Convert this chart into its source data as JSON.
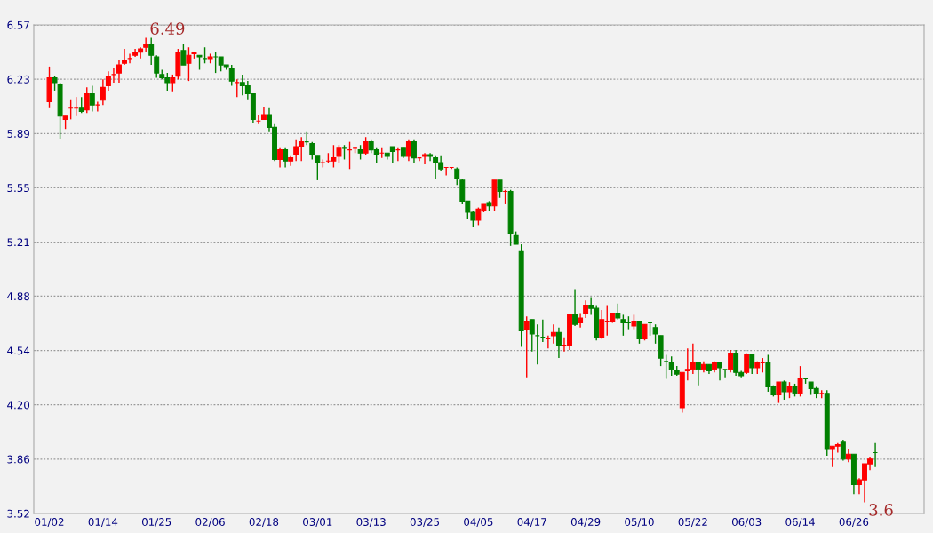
{
  "chart_data": {
    "type": "candlestick",
    "annotations": [
      "6.49",
      "3.6"
    ],
    "categories": [
      "01/02",
      null,
      null,
      null,
      null,
      null,
      null,
      null,
      null,
      null,
      "01/14",
      null,
      null,
      null,
      null,
      null,
      null,
      null,
      null,
      null,
      "01/25",
      null,
      null,
      null,
      null,
      null,
      null,
      null,
      null,
      null,
      "02/06",
      null,
      null,
      null,
      null,
      null,
      null,
      null,
      null,
      null,
      "02/18",
      null,
      null,
      null,
      null,
      null,
      null,
      null,
      null,
      null,
      "03/01",
      null,
      null,
      null,
      null,
      null,
      null,
      null,
      null,
      null,
      "03/13",
      null,
      null,
      null,
      null,
      null,
      null,
      null,
      null,
      null,
      "03/25",
      null,
      null,
      null,
      null,
      null,
      null,
      null,
      null,
      null,
      "04/05",
      null,
      null,
      null,
      null,
      null,
      null,
      null,
      null,
      null,
      "04/17",
      null,
      null,
      null,
      null,
      null,
      null,
      null,
      null,
      null,
      "04/29",
      null,
      null,
      null,
      null,
      null,
      null,
      null,
      null,
      null,
      "05/10",
      null,
      null,
      null,
      null,
      null,
      null,
      null,
      null,
      null,
      "05/22",
      null,
      null,
      null,
      null,
      null,
      null,
      null,
      null,
      null,
      "06/03",
      null,
      null,
      null,
      null,
      null,
      null,
      null,
      null,
      null,
      "06/14",
      null,
      null,
      null,
      null,
      null,
      null,
      null,
      null,
      null,
      "06/26",
      null,
      null,
      null,
      null
    ],
    "ohlc": [
      [
        6.09,
        6.31,
        6.05,
        6.24
      ],
      [
        6.24,
        6.25,
        6.16,
        6.21
      ],
      [
        6.2,
        6.21,
        5.86,
        6.0
      ],
      [
        5.98,
        6.0,
        5.92,
        6.0
      ],
      [
        6.05,
        6.1,
        5.98,
        6.05
      ],
      [
        6.05,
        6.12,
        6.0,
        6.05
      ],
      [
        6.05,
        6.12,
        6.02,
        6.03
      ],
      [
        6.04,
        6.18,
        6.02,
        6.14
      ],
      [
        6.14,
        6.19,
        6.03,
        6.07
      ],
      [
        6.07,
        6.09,
        6.03,
        6.07
      ],
      [
        6.1,
        6.23,
        6.07,
        6.18
      ],
      [
        6.19,
        6.28,
        6.16,
        6.25
      ],
      [
        6.26,
        6.3,
        6.21,
        6.26
      ],
      [
        6.27,
        6.35,
        6.21,
        6.32
      ],
      [
        6.33,
        6.42,
        6.32,
        6.35
      ],
      [
        6.36,
        6.39,
        6.33,
        6.36
      ],
      [
        6.38,
        6.42,
        6.37,
        6.4
      ],
      [
        6.4,
        6.43,
        6.36,
        6.42
      ],
      [
        6.43,
        6.49,
        6.4,
        6.45
      ],
      [
        6.45,
        6.49,
        6.32,
        6.38
      ],
      [
        6.37,
        6.38,
        6.24,
        6.27
      ],
      [
        6.26,
        6.29,
        6.23,
        6.24
      ],
      [
        6.24,
        6.27,
        6.16,
        6.21
      ],
      [
        6.21,
        6.26,
        6.15,
        6.24
      ],
      [
        6.25,
        6.42,
        6.23,
        6.4
      ],
      [
        6.41,
        6.45,
        6.32,
        6.32
      ],
      [
        6.33,
        6.43,
        6.22,
        6.38
      ],
      [
        6.39,
        6.4,
        6.36,
        6.4
      ],
      [
        6.38,
        6.38,
        6.29,
        6.37
      ],
      [
        6.36,
        6.43,
        6.33,
        6.36
      ],
      [
        6.36,
        6.39,
        6.33,
        6.37
      ],
      [
        6.37,
        6.4,
        6.27,
        6.37
      ],
      [
        6.37,
        6.37,
        6.28,
        6.32
      ],
      [
        6.32,
        6.32,
        6.29,
        6.31
      ],
      [
        6.3,
        6.32,
        6.19,
        6.22
      ],
      [
        6.21,
        6.23,
        6.12,
        6.21
      ],
      [
        6.21,
        6.26,
        6.13,
        6.19
      ],
      [
        6.19,
        6.22,
        6.1,
        6.14
      ],
      [
        6.14,
        6.14,
        5.96,
        5.98
      ],
      [
        5.97,
        6.01,
        5.95,
        5.97
      ],
      [
        5.98,
        6.06,
        5.98,
        6.01
      ],
      [
        6.01,
        6.05,
        5.9,
        5.93
      ],
      [
        5.93,
        5.95,
        5.72,
        5.73
      ],
      [
        5.73,
        5.8,
        5.68,
        5.79
      ],
      [
        5.79,
        5.8,
        5.68,
        5.72
      ],
      [
        5.72,
        5.75,
        5.69,
        5.74
      ],
      [
        5.76,
        5.85,
        5.72,
        5.81
      ],
      [
        5.81,
        5.87,
        5.72,
        5.84
      ],
      [
        5.84,
        5.9,
        5.82,
        5.84
      ],
      [
        5.83,
        5.84,
        5.73,
        5.76
      ],
      [
        5.75,
        5.75,
        5.6,
        5.71
      ],
      [
        5.71,
        5.73,
        5.68,
        5.71
      ],
      [
        5.72,
        5.77,
        5.71,
        5.72
      ],
      [
        5.72,
        5.82,
        5.68,
        5.74
      ],
      [
        5.75,
        5.82,
        5.71,
        5.8
      ],
      [
        5.8,
        5.82,
        5.73,
        5.8
      ],
      [
        5.79,
        5.84,
        5.67,
        5.79
      ],
      [
        5.8,
        5.81,
        5.77,
        5.8
      ],
      [
        5.79,
        5.82,
        5.73,
        5.77
      ],
      [
        5.77,
        5.87,
        5.76,
        5.84
      ],
      [
        5.84,
        5.85,
        5.77,
        5.79
      ],
      [
        5.79,
        5.8,
        5.71,
        5.76
      ],
      [
        5.77,
        5.8,
        5.74,
        5.77
      ],
      [
        5.77,
        5.77,
        5.73,
        5.75
      ],
      [
        5.81,
        5.81,
        5.71,
        5.78
      ],
      [
        5.79,
        5.8,
        5.72,
        5.79
      ],
      [
        5.8,
        5.8,
        5.74,
        5.75
      ],
      [
        5.75,
        5.85,
        5.72,
        5.84
      ],
      [
        5.84,
        5.85,
        5.71,
        5.74
      ],
      [
        5.74,
        5.74,
        5.72,
        5.74
      ],
      [
        5.75,
        5.77,
        5.7,
        5.76
      ],
      [
        5.76,
        5.77,
        5.72,
        5.75
      ],
      [
        5.74,
        5.75,
        5.61,
        5.71
      ],
      [
        5.71,
        5.75,
        5.66,
        5.67
      ],
      [
        5.68,
        5.68,
        5.63,
        5.68
      ],
      [
        5.68,
        5.68,
        5.67,
        5.68
      ],
      [
        5.67,
        5.68,
        5.57,
        5.61
      ],
      [
        5.6,
        5.61,
        5.45,
        5.47
      ],
      [
        5.47,
        5.47,
        5.36,
        5.4
      ],
      [
        5.4,
        5.41,
        5.31,
        5.35
      ],
      [
        5.35,
        5.43,
        5.32,
        5.42
      ],
      [
        5.41,
        5.45,
        5.4,
        5.45
      ],
      [
        5.46,
        5.47,
        5.41,
        5.44
      ],
      [
        5.44,
        5.6,
        5.41,
        5.6
      ],
      [
        5.6,
        5.6,
        5.49,
        5.53
      ],
      [
        5.53,
        5.54,
        5.45,
        5.53
      ],
      [
        5.53,
        5.54,
        5.19,
        5.27
      ],
      [
        5.26,
        5.28,
        5.2,
        5.2
      ],
      [
        5.16,
        5.2,
        4.56,
        4.66
      ],
      [
        4.67,
        4.75,
        4.37,
        4.72
      ],
      [
        4.73,
        4.73,
        4.53,
        4.64
      ],
      [
        4.63,
        4.7,
        4.45,
        4.63
      ],
      [
        4.62,
        4.73,
        4.59,
        4.62
      ],
      [
        4.61,
        4.63,
        4.55,
        4.61
      ],
      [
        4.63,
        4.7,
        4.58,
        4.65
      ],
      [
        4.65,
        4.68,
        4.49,
        4.57
      ],
      [
        4.57,
        4.62,
        4.53,
        4.57
      ],
      [
        4.57,
        4.76,
        4.54,
        4.76
      ],
      [
        4.76,
        4.92,
        4.69,
        4.7
      ],
      [
        4.71,
        4.77,
        4.68,
        4.74
      ],
      [
        4.77,
        4.85,
        4.74,
        4.82
      ],
      [
        4.82,
        4.87,
        4.76,
        4.8
      ],
      [
        4.8,
        4.82,
        4.6,
        4.62
      ],
      [
        4.62,
        4.79,
        4.61,
        4.73
      ],
      [
        4.72,
        4.82,
        4.63,
        4.72
      ],
      [
        4.72,
        4.77,
        4.71,
        4.77
      ],
      [
        4.77,
        4.83,
        4.73,
        4.74
      ],
      [
        4.73,
        4.76,
        4.63,
        4.71
      ],
      [
        4.71,
        4.75,
        4.67,
        4.71
      ],
      [
        4.69,
        4.76,
        4.67,
        4.72
      ],
      [
        4.72,
        4.72,
        4.58,
        4.61
      ],
      [
        4.61,
        4.7,
        4.6,
        4.7
      ],
      [
        4.71,
        4.71,
        4.63,
        4.71
      ],
      [
        4.68,
        4.7,
        4.58,
        4.64
      ],
      [
        4.63,
        4.63,
        4.44,
        4.49
      ],
      [
        4.47,
        4.51,
        4.36,
        4.47
      ],
      [
        4.46,
        4.5,
        4.38,
        4.42
      ],
      [
        4.41,
        4.44,
        4.38,
        4.39
      ],
      [
        4.18,
        4.4,
        4.15,
        4.4
      ],
      [
        4.41,
        4.55,
        4.35,
        4.42
      ],
      [
        4.42,
        4.58,
        4.39,
        4.46
      ],
      [
        4.46,
        4.46,
        4.32,
        4.42
      ],
      [
        4.42,
        4.47,
        4.4,
        4.45
      ],
      [
        4.45,
        4.45,
        4.39,
        4.41
      ],
      [
        4.42,
        4.47,
        4.4,
        4.46
      ],
      [
        4.46,
        4.46,
        4.35,
        4.43
      ],
      [
        4.42,
        4.42,
        4.37,
        4.42
      ],
      [
        4.42,
        4.54,
        4.4,
        4.52
      ],
      [
        4.52,
        4.54,
        4.38,
        4.4
      ],
      [
        4.4,
        4.41,
        4.37,
        4.38
      ],
      [
        4.4,
        4.52,
        4.39,
        4.51
      ],
      [
        4.51,
        4.51,
        4.39,
        4.43
      ],
      [
        4.43,
        4.47,
        4.39,
        4.46
      ],
      [
        4.46,
        4.49,
        4.4,
        4.46
      ],
      [
        4.46,
        4.51,
        4.28,
        4.31
      ],
      [
        4.31,
        4.32,
        4.25,
        4.26
      ],
      [
        4.26,
        4.34,
        4.21,
        4.34
      ],
      [
        4.34,
        4.35,
        4.23,
        4.28
      ],
      [
        4.28,
        4.34,
        4.24,
        4.31
      ],
      [
        4.31,
        4.33,
        4.25,
        4.27
      ],
      [
        4.27,
        4.44,
        4.25,
        4.36
      ],
      [
        4.36,
        4.36,
        4.33,
        4.36
      ],
      [
        4.34,
        4.34,
        4.26,
        4.3
      ],
      [
        4.3,
        4.31,
        4.24,
        4.27
      ],
      [
        4.27,
        4.29,
        4.24,
        4.27
      ],
      [
        4.27,
        4.29,
        3.88,
        3.92
      ],
      [
        3.92,
        3.94,
        3.81,
        3.94
      ],
      [
        3.94,
        3.96,
        3.9,
        3.95
      ],
      [
        3.97,
        3.98,
        3.85,
        3.86
      ],
      [
        3.86,
        3.92,
        3.84,
        3.89
      ],
      [
        3.89,
        3.89,
        3.64,
        3.7
      ],
      [
        3.7,
        3.74,
        3.64,
        3.73
      ],
      [
        3.73,
        3.83,
        3.59,
        3.83
      ],
      [
        3.83,
        3.87,
        3.79,
        3.86
      ],
      [
        3.9,
        3.96,
        3.81,
        3.9
      ]
    ],
    "colors": [
      "#ff0000",
      "#008000",
      "#008000",
      "#ff0000",
      "#ff0000",
      "#ff0000",
      "#008000",
      "#ff0000",
      "#008000",
      "#ff0000",
      "#ff0000",
      "#ff0000",
      "#ff0000",
      "#ff0000",
      "#ff0000",
      "#ff0000",
      "#ff0000",
      "#ff0000",
      "#ff0000",
      "#008000",
      "#008000",
      "#008000",
      "#008000",
      "#ff0000",
      "#ff0000",
      "#008000",
      "#ff0000",
      "#ff0000",
      "#008000",
      "#008000",
      "#ff0000",
      "#008000",
      "#008000",
      "#008000",
      "#008000",
      "#ff0000",
      "#008000",
      "#008000",
      "#008000",
      "#ff0000",
      "#ff0000",
      "#008000",
      "#008000",
      "#ff0000",
      "#008000",
      "#ff0000",
      "#ff0000",
      "#ff0000",
      "#008000",
      "#008000",
      "#008000",
      "#ff0000",
      "#ff0000",
      "#ff0000",
      "#ff0000",
      "#008000",
      "#ff0000",
      "#ff0000",
      "#008000",
      "#ff0000",
      "#008000",
      "#008000",
      "#ff0000",
      "#008000",
      "#008000",
      "#ff0000",
      "#008000",
      "#ff0000",
      "#008000",
      "#ff0000",
      "#ff0000",
      "#008000",
      "#008000",
      "#008000",
      "#ff0000",
      "#ff0000",
      "#008000",
      "#008000",
      "#008000",
      "#008000",
      "#ff0000",
      "#ff0000",
      "#008000",
      "#ff0000",
      "#008000",
      "#ff0000",
      "#008000",
      "#008000",
      "#008000",
      "#ff0000",
      "#008000",
      "#008000",
      "#008000",
      "#ff0000",
      "#ff0000",
      "#008000",
      "#ff0000",
      "#ff0000",
      "#008000",
      "#ff0000",
      "#ff0000",
      "#008000",
      "#008000",
      "#ff0000",
      "#ff0000",
      "#ff0000",
      "#008000",
      "#008000",
      "#008000",
      "#ff0000",
      "#008000",
      "#ff0000",
      "#008000",
      "#008000",
      "#008000",
      "#008000",
      "#008000",
      "#008000",
      "#ff0000",
      "#ff0000",
      "#ff0000",
      "#008000",
      "#ff0000",
      "#008000",
      "#ff0000",
      "#008000",
      "#008000",
      "#ff0000",
      "#008000",
      "#008000",
      "#ff0000",
      "#008000",
      "#ff0000",
      "#ff0000",
      "#008000",
      "#008000",
      "#ff0000",
      "#008000",
      "#ff0000",
      "#008000",
      "#ff0000",
      "#008000",
      "#008000",
      "#008000",
      "#ff0000",
      "#008000",
      "#ff0000",
      "#ff0000",
      "#008000",
      "#ff0000",
      "#008000",
      "#ff0000",
      "#ff0000",
      "#ff0000",
      "#008000"
    ],
    "ylim": [
      3.52,
      6.57
    ],
    "yticks": [
      3.52,
      {
        "value": 3.859,
        "label": "3.86"
      },
      {
        "value": 4.198,
        "label": "4.20"
      },
      {
        "value": 4.537,
        "label": "4.54"
      },
      {
        "value": 4.876,
        "label": "4.88"
      },
      {
        "value": 5.214,
        "label": "5.21"
      },
      {
        "value": 5.553,
        "label": "5.55"
      },
      {
        "value": 5.892,
        "label": "5.89"
      },
      {
        "value": 6.231,
        "label": "6.23"
      },
      6.57
    ],
    "grid": "y"
  }
}
